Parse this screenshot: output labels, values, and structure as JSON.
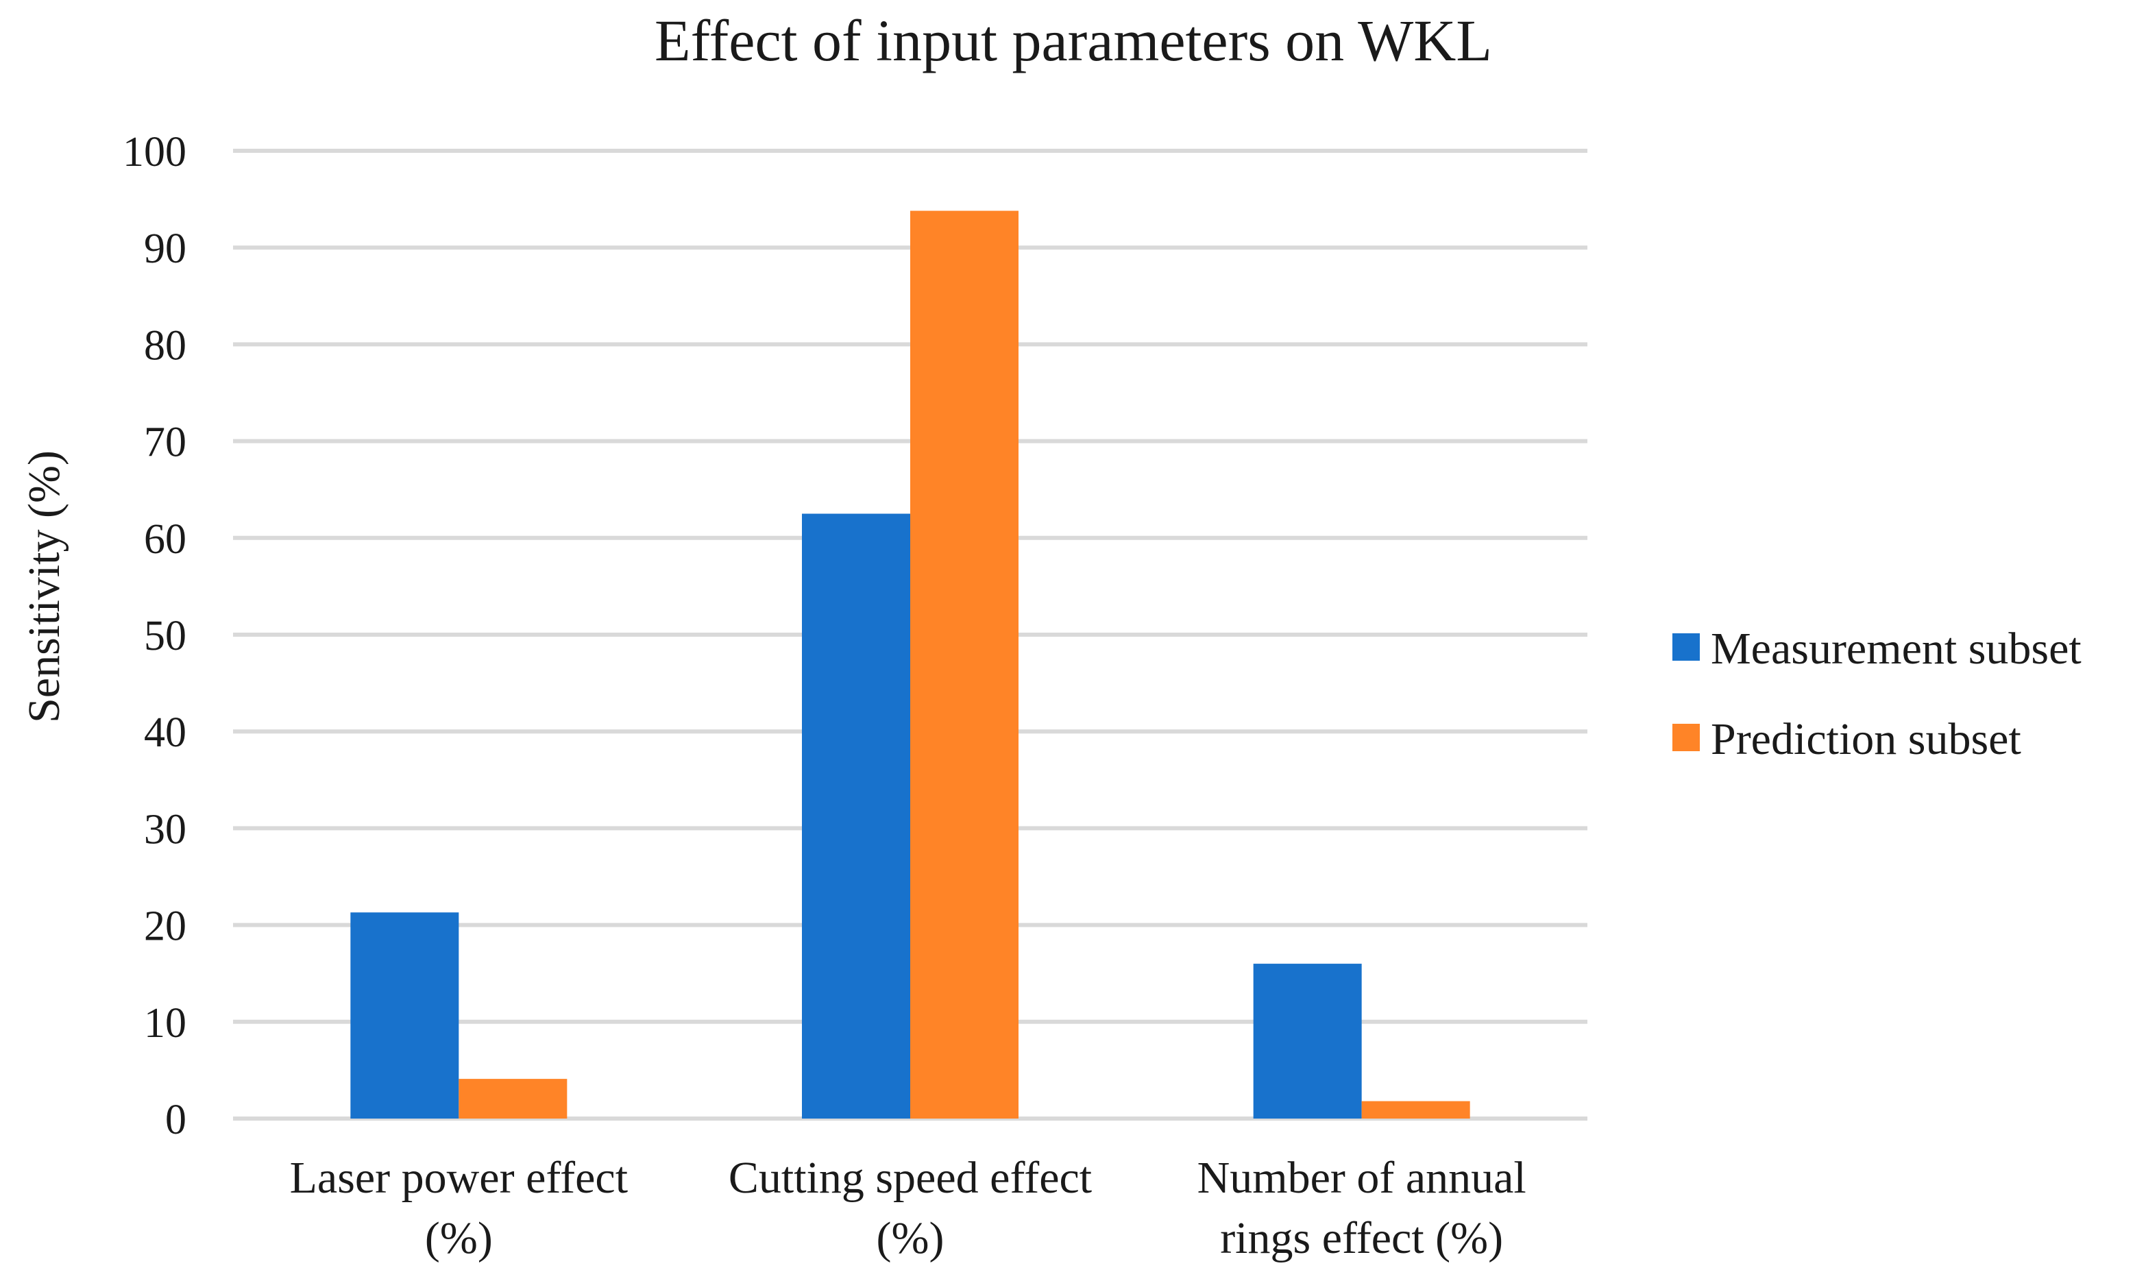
{
  "chart_data": {
    "type": "bar",
    "title": "Effect of input parameters on WKL",
    "xlabel": "",
    "ylabel": "Sensitivity (%)",
    "ylim": [
      0,
      100
    ],
    "yticks": [
      0,
      10,
      20,
      30,
      40,
      50,
      60,
      70,
      80,
      90,
      100
    ],
    "grid": true,
    "legend_position": "right",
    "categories": [
      [
        "Laser power effect",
        "(%)"
      ],
      [
        "Cutting speed effect",
        "(%)"
      ],
      [
        "Number of annual",
        "rings effect (%)"
      ]
    ],
    "series": [
      {
        "name": "Measurement subset",
        "color": "#1872cc",
        "values": [
          21.3,
          62.5,
          16.0
        ]
      },
      {
        "name": "Prediction subset",
        "color": "#ff8427",
        "values": [
          4.1,
          93.8,
          1.8
        ]
      }
    ]
  }
}
